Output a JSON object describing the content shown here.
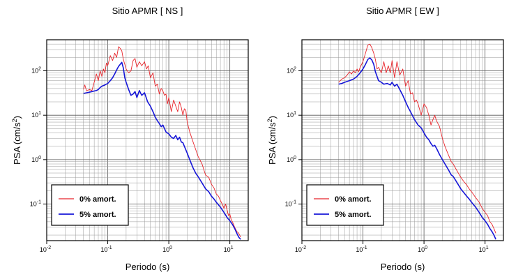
{
  "chart_data": [
    {
      "type": "line",
      "title": "Sitio APMR [ NS ]",
      "xlabel": "Periodo (s)",
      "ylabel_main": "PSA (cm/s",
      "ylabel_sup": "2",
      "ylabel_close": ")",
      "x_scale": "log",
      "y_scale": "log",
      "xlim": [
        0.01,
        20
      ],
      "ylim": [
        0.015,
        500
      ],
      "grid": true,
      "legend_placement": "bottom-left",
      "x_ticks": [
        {
          "value": 0.01,
          "base": "10",
          "exp": "-2"
        },
        {
          "value": 0.1,
          "base": "10",
          "exp": "-1"
        },
        {
          "value": 1,
          "base": "10",
          "exp": "0"
        },
        {
          "value": 10,
          "base": "10",
          "exp": "1"
        }
      ],
      "y_ticks": [
        {
          "value": 0.1,
          "base": "10",
          "exp": "-1"
        },
        {
          "value": 1,
          "base": "10",
          "exp": "0"
        },
        {
          "value": 10,
          "base": "10",
          "exp": "1"
        },
        {
          "value": 100,
          "base": "10",
          "exp": "2"
        }
      ],
      "series": [
        {
          "name": "0% amort.",
          "color": "#e8242a",
          "x": [
            0.04,
            0.042,
            0.045,
            0.05,
            0.055,
            0.06,
            0.065,
            0.07,
            0.075,
            0.08,
            0.085,
            0.09,
            0.095,
            0.1,
            0.11,
            0.12,
            0.13,
            0.14,
            0.15,
            0.16,
            0.17,
            0.18,
            0.19,
            0.2,
            0.22,
            0.24,
            0.26,
            0.28,
            0.3,
            0.33,
            0.36,
            0.4,
            0.43,
            0.46,
            0.5,
            0.55,
            0.6,
            0.65,
            0.7,
            0.75,
            0.8,
            0.85,
            0.9,
            0.95,
            1.0,
            1.1,
            1.2,
            1.3,
            1.4,
            1.5,
            1.6,
            1.7,
            1.8,
            1.9,
            2.0,
            2.2,
            2.5,
            2.8,
            3.0,
            3.5,
            4.0,
            4.5,
            5.0,
            5.5,
            6.0,
            6.5,
            7.0,
            7.5,
            8.0,
            8.5,
            9.0,
            9.5,
            10,
            10.5,
            11,
            12,
            13,
            14,
            15
          ],
          "y": [
            38,
            48,
            35,
            38,
            36,
            55,
            85,
            60,
            100,
            75,
            110,
            90,
            150,
            130,
            220,
            170,
            250,
            200,
            350,
            320,
            280,
            180,
            140,
            110,
            90,
            100,
            170,
            190,
            120,
            160,
            130,
            160,
            110,
            130,
            70,
            90,
            45,
            50,
            30,
            40,
            35,
            28,
            30,
            18,
            25,
            12,
            22,
            16,
            12,
            20,
            15,
            10,
            14,
            13,
            7,
            4.2,
            2.5,
            1.6,
            1.2,
            0.8,
            0.45,
            0.4,
            0.28,
            0.23,
            0.17,
            0.15,
            0.12,
            0.1,
            0.08,
            0.1,
            0.075,
            0.055,
            0.06,
            0.045,
            0.04,
            0.03,
            0.024,
            0.022,
            0.018
          ]
        },
        {
          "name": "5% amort.",
          "color": "#1616d8",
          "x": [
            0.04,
            0.045,
            0.05,
            0.055,
            0.06,
            0.065,
            0.07,
            0.075,
            0.08,
            0.09,
            0.1,
            0.11,
            0.12,
            0.13,
            0.14,
            0.15,
            0.16,
            0.17,
            0.18,
            0.19,
            0.2,
            0.22,
            0.24,
            0.26,
            0.28,
            0.3,
            0.33,
            0.36,
            0.4,
            0.45,
            0.5,
            0.55,
            0.6,
            0.65,
            0.7,
            0.75,
            0.8,
            0.9,
            1.0,
            1.1,
            1.2,
            1.3,
            1.4,
            1.5,
            1.6,
            1.7,
            1.8,
            2.0,
            2.2,
            2.5,
            2.8,
            3.0,
            3.5,
            4.0,
            4.5,
            5.0,
            5.5,
            6.0,
            7.0,
            8.0,
            9.0,
            10,
            11,
            12,
            13,
            14,
            15
          ],
          "y": [
            31,
            32,
            33,
            34,
            35,
            36,
            38,
            42,
            45,
            48,
            52,
            60,
            70,
            85,
            105,
            125,
            140,
            155,
            115,
            70,
            55,
            38,
            28,
            30,
            34,
            25,
            36,
            28,
            32,
            20,
            16,
            12,
            9,
            7.5,
            6.5,
            5.5,
            6.0,
            4.2,
            3.8,
            3.2,
            3.0,
            3.5,
            2.8,
            3.2,
            2.5,
            2.4,
            2.0,
            1.4,
            1.0,
            0.65,
            0.48,
            0.42,
            0.3,
            0.22,
            0.19,
            0.15,
            0.13,
            0.11,
            0.085,
            0.065,
            0.05,
            0.042,
            0.035,
            0.028,
            0.022,
            0.018,
            0.016
          ]
        }
      ]
    },
    {
      "type": "line",
      "title": "Sitio APMR [ EW ]",
      "xlabel": "Periodo (s)",
      "ylabel_main": "PSA (cm/s",
      "ylabel_sup": "2",
      "ylabel_close": ")",
      "x_scale": "log",
      "y_scale": "log",
      "xlim": [
        0.01,
        20
      ],
      "ylim": [
        0.015,
        500
      ],
      "grid": true,
      "legend_placement": "bottom-left",
      "x_ticks": [
        {
          "value": 0.01,
          "base": "10",
          "exp": "-2"
        },
        {
          "value": 0.1,
          "base": "10",
          "exp": "-1"
        },
        {
          "value": 1,
          "base": "10",
          "exp": "0"
        },
        {
          "value": 10,
          "base": "10",
          "exp": "1"
        }
      ],
      "y_ticks": [
        {
          "value": 0.1,
          "base": "10",
          "exp": "-1"
        },
        {
          "value": 1,
          "base": "10",
          "exp": "0"
        },
        {
          "value": 10,
          "base": "10",
          "exp": "1"
        },
        {
          "value": 100,
          "base": "10",
          "exp": "2"
        }
      ],
      "series": [
        {
          "name": "0% amort.",
          "color": "#e8242a",
          "x": [
            0.04,
            0.045,
            0.05,
            0.055,
            0.06,
            0.065,
            0.07,
            0.075,
            0.08,
            0.085,
            0.09,
            0.1,
            0.11,
            0.12,
            0.13,
            0.14,
            0.15,
            0.16,
            0.17,
            0.18,
            0.2,
            0.22,
            0.24,
            0.26,
            0.28,
            0.3,
            0.33,
            0.36,
            0.4,
            0.45,
            0.5,
            0.55,
            0.6,
            0.65,
            0.7,
            0.75,
            0.8,
            0.9,
            1.0,
            1.1,
            1.2,
            1.3,
            1.4,
            1.5,
            1.6,
            1.8,
            2.0,
            2.2,
            2.5,
            2.8,
            3.0,
            3.5,
            4.0,
            4.5,
            5.0,
            5.5,
            6.0,
            7.0,
            8.0,
            9.0,
            10,
            11,
            12,
            13,
            14,
            15
          ],
          "y": [
            55,
            65,
            70,
            80,
            95,
            85,
            100,
            90,
            110,
            95,
            120,
            160,
            250,
            380,
            400,
            330,
            250,
            180,
            110,
            120,
            90,
            160,
            90,
            130,
            90,
            170,
            70,
            160,
            80,
            110,
            45,
            60,
            30,
            32,
            20,
            22,
            18,
            10,
            18,
            15,
            10,
            6,
            8,
            10,
            7.5,
            5.5,
            3.0,
            2.0,
            1.3,
            0.9,
            0.8,
            0.55,
            0.4,
            0.32,
            0.27,
            0.22,
            0.19,
            0.14,
            0.11,
            0.08,
            0.065,
            0.055,
            0.04,
            0.035,
            0.028,
            0.022
          ]
        },
        {
          "name": "5% amort.",
          "color": "#1616d8",
          "x": [
            0.04,
            0.045,
            0.05,
            0.06,
            0.07,
            0.08,
            0.09,
            0.1,
            0.11,
            0.12,
            0.13,
            0.14,
            0.15,
            0.16,
            0.18,
            0.2,
            0.22,
            0.25,
            0.28,
            0.3,
            0.33,
            0.36,
            0.4,
            0.45,
            0.5,
            0.55,
            0.6,
            0.7,
            0.8,
            0.9,
            1.0,
            1.1,
            1.2,
            1.3,
            1.4,
            1.5,
            1.6,
            1.8,
            2.0,
            2.2,
            2.5,
            2.8,
            3.0,
            3.5,
            4.0,
            4.5,
            5.0,
            5.5,
            6.0,
            7.0,
            8.0,
            9.0,
            10,
            11,
            12,
            13,
            14,
            15
          ],
          "y": [
            50,
            52,
            55,
            60,
            65,
            75,
            90,
            110,
            140,
            180,
            195,
            175,
            140,
            95,
            60,
            55,
            50,
            52,
            48,
            55,
            45,
            50,
            38,
            28,
            20,
            15,
            12,
            8,
            6,
            5.2,
            4.0,
            3.2,
            2.8,
            2.3,
            2.0,
            2.1,
            1.8,
            1.3,
            1.0,
            0.8,
            0.6,
            0.45,
            0.42,
            0.3,
            0.22,
            0.18,
            0.15,
            0.13,
            0.11,
            0.085,
            0.065,
            0.05,
            0.042,
            0.035,
            0.028,
            0.024,
            0.02,
            0.016
          ]
        }
      ]
    }
  ]
}
